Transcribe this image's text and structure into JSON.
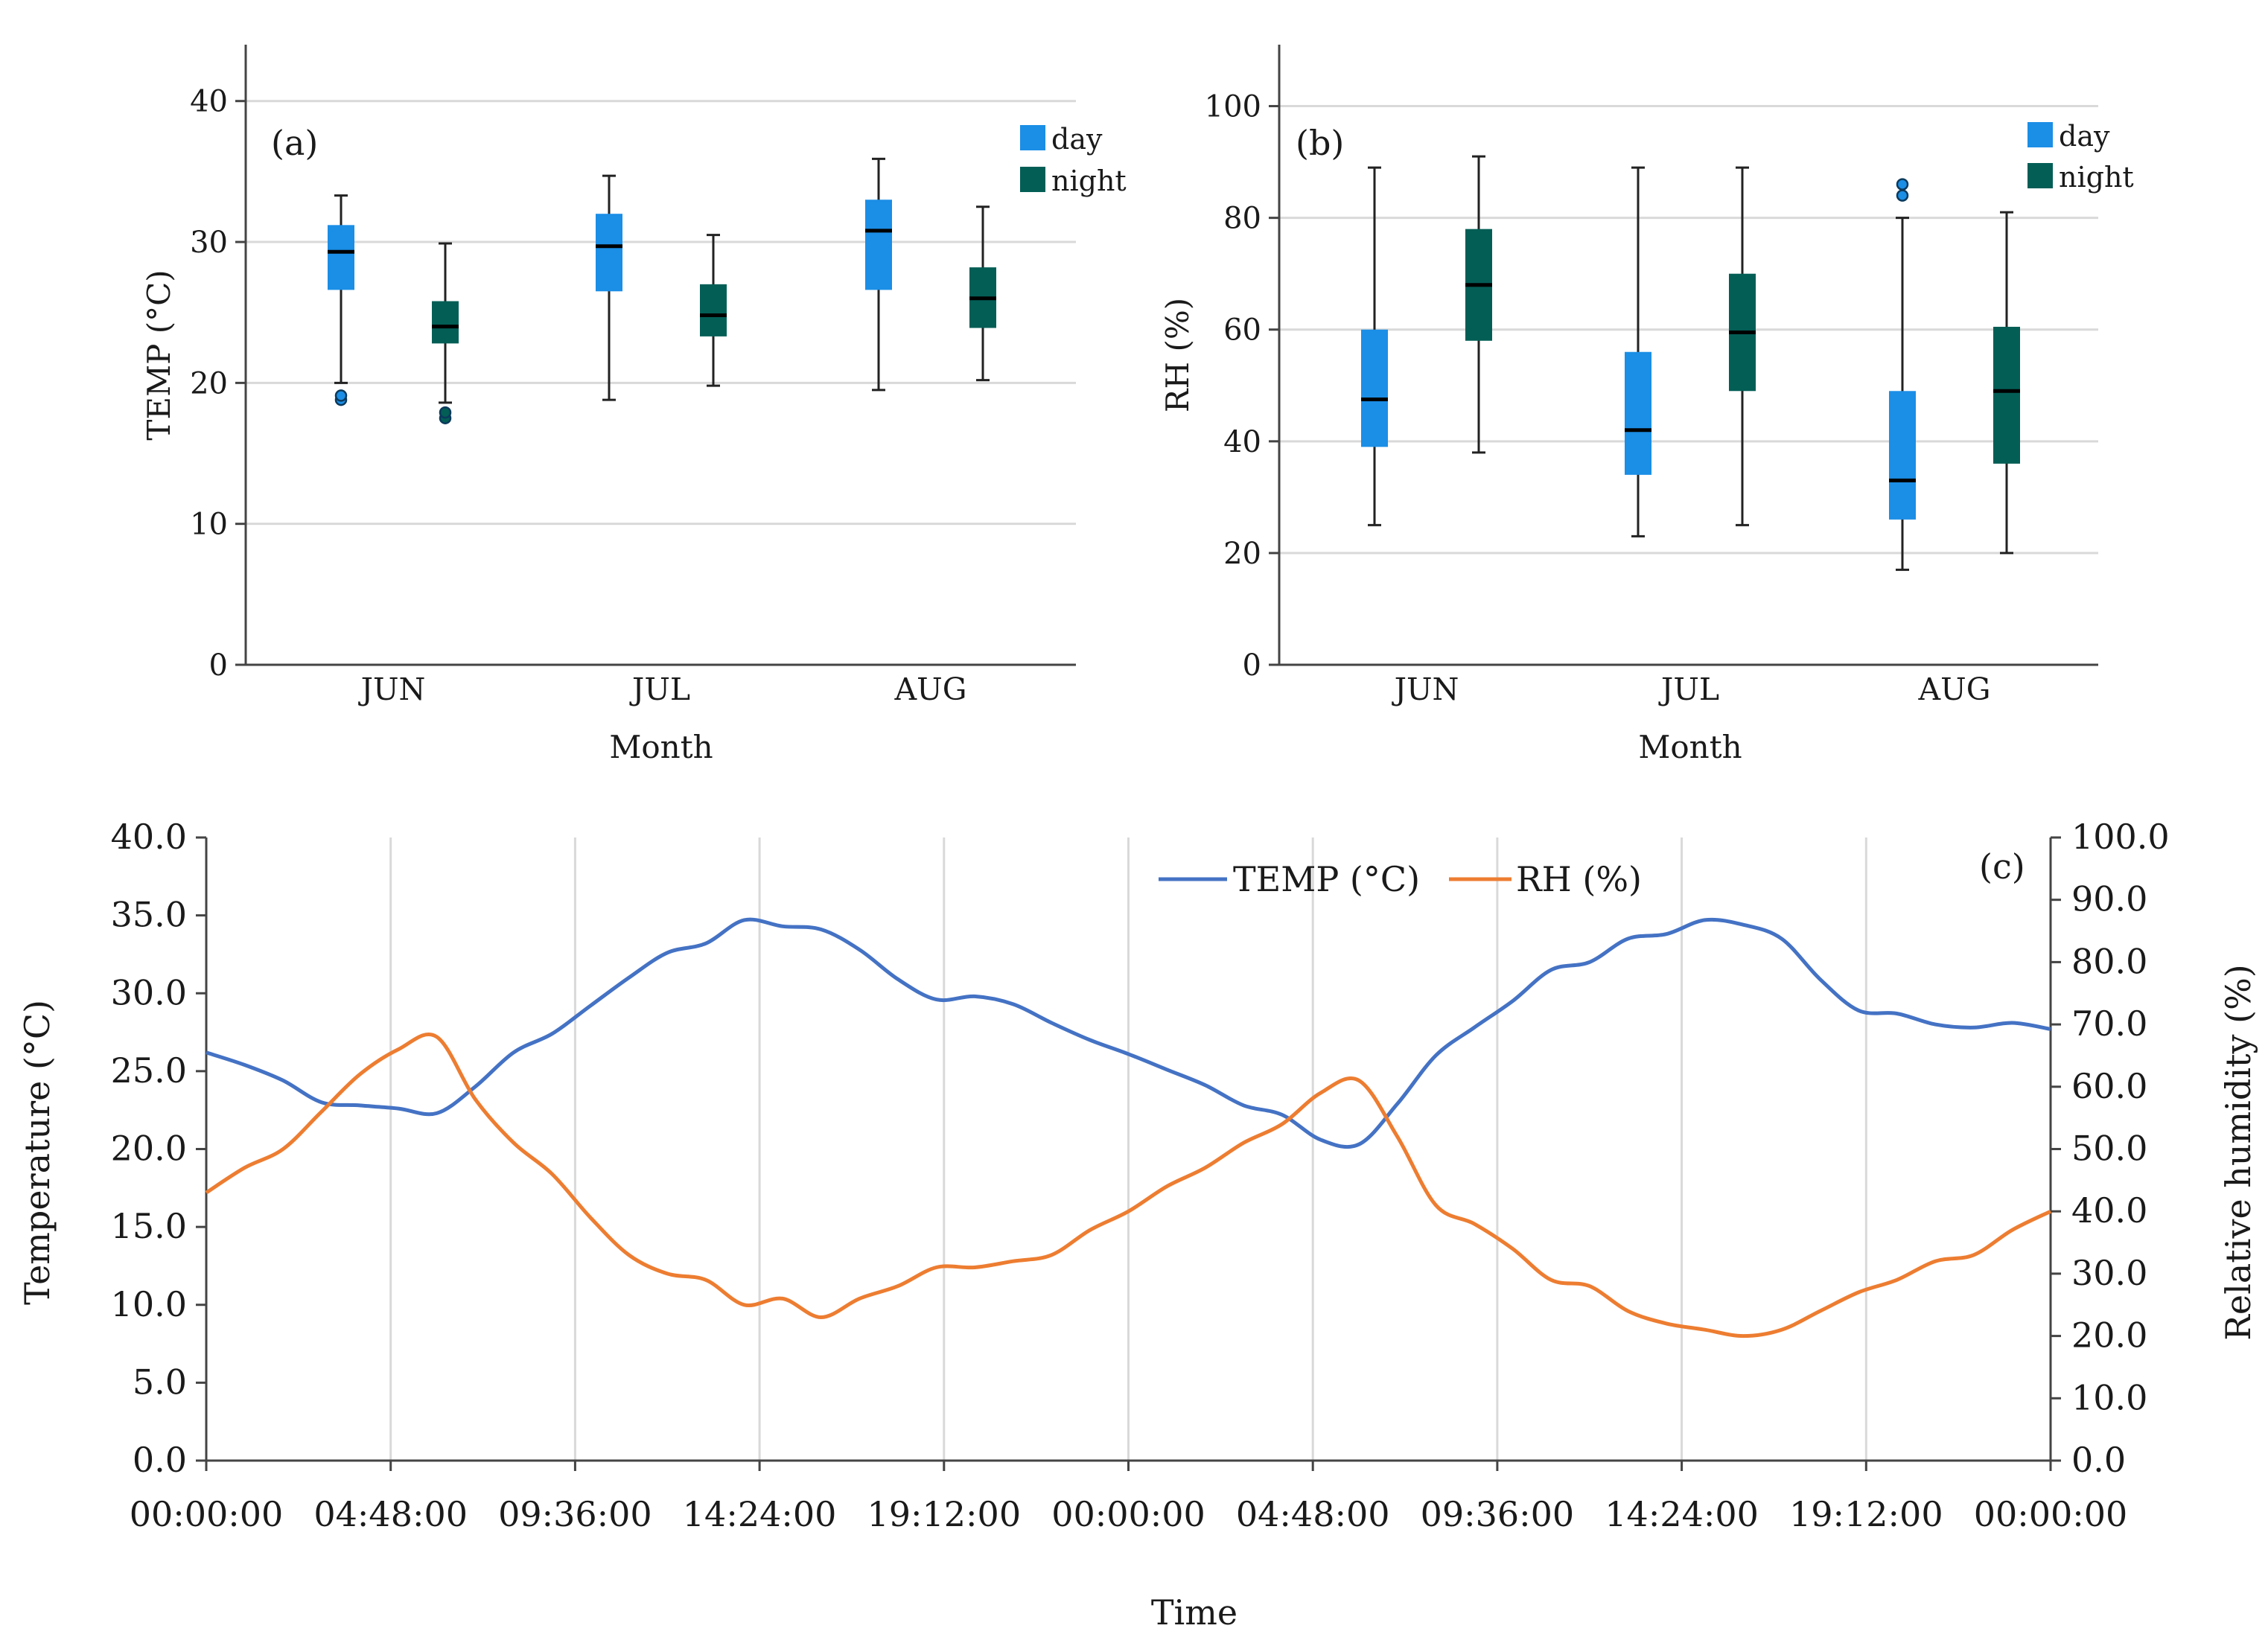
{
  "chart_data": [
    {
      "id": "a",
      "type": "box",
      "panel_label": "(a)",
      "xlabel": "Month",
      "ylabel": "TEMP (°C)",
      "ylim": [
        0,
        44
      ],
      "yticks": [
        0,
        10,
        20,
        30,
        40
      ],
      "categories": [
        "JUN",
        "JUL",
        "AUG"
      ],
      "legend": [
        "day",
        "night"
      ],
      "series": [
        {
          "name": "day",
          "color": "#1b8ee6",
          "boxes": [
            {
              "month": "JUN",
              "min": 20.0,
              "q1": 26.6,
              "median": 29.3,
              "q3": 31.2,
              "max": 33.3,
              "outliers": [
                18.8,
                19.1
              ]
            },
            {
              "month": "JUL",
              "min": 18.8,
              "q1": 26.5,
              "median": 29.7,
              "q3": 32.0,
              "max": 34.7,
              "outliers": []
            },
            {
              "month": "AUG",
              "min": 19.5,
              "q1": 26.6,
              "median": 30.8,
              "q3": 33.0,
              "max": 35.9,
              "outliers": []
            }
          ]
        },
        {
          "name": "night",
          "color": "#035e56",
          "boxes": [
            {
              "month": "JUN",
              "min": 18.6,
              "q1": 22.8,
              "median": 24.0,
              "q3": 25.8,
              "max": 29.9,
              "outliers": [
                17.5,
                17.9
              ]
            },
            {
              "month": "JUL",
              "min": 19.8,
              "q1": 23.3,
              "median": 24.8,
              "q3": 27.0,
              "max": 30.5,
              "outliers": []
            },
            {
              "month": "AUG",
              "min": 20.2,
              "q1": 23.9,
              "median": 26.0,
              "q3": 28.2,
              "max": 32.5,
              "outliers": []
            }
          ]
        }
      ]
    },
    {
      "id": "b",
      "type": "box",
      "panel_label": "(b)",
      "xlabel": "Month",
      "ylabel": "RH (%)",
      "ylim": [
        0,
        111
      ],
      "yticks": [
        0,
        20,
        40,
        60,
        80,
        100
      ],
      "categories": [
        "JUN",
        "JUL",
        "AUG"
      ],
      "legend": [
        "day",
        "night"
      ],
      "series": [
        {
          "name": "day",
          "color": "#1b8ee6",
          "boxes": [
            {
              "month": "JUN",
              "min": 25,
              "q1": 39,
              "median": 47.5,
              "q3": 60,
              "max": 89,
              "outliers": []
            },
            {
              "month": "JUL",
              "min": 23,
              "q1": 34,
              "median": 42,
              "q3": 56,
              "max": 89,
              "outliers": []
            },
            {
              "month": "AUG",
              "min": 17,
              "q1": 26,
              "median": 33,
              "q3": 49,
              "max": 80,
              "outliers": [
                84,
                86
              ]
            }
          ]
        },
        {
          "name": "night",
          "color": "#035e56",
          "boxes": [
            {
              "month": "JUN",
              "min": 38,
              "q1": 58,
              "median": 68,
              "q3": 78,
              "max": 91,
              "outliers": []
            },
            {
              "month": "JUL",
              "min": 25,
              "q1": 49,
              "median": 59.5,
              "q3": 70,
              "max": 89,
              "outliers": []
            },
            {
              "month": "AUG",
              "min": 20,
              "q1": 36,
              "median": 49,
              "q3": 60.5,
              "max": 81,
              "outliers": []
            }
          ]
        }
      ]
    },
    {
      "id": "c",
      "type": "line",
      "panel_label": "(c)",
      "xlabel": "Time",
      "ylabel": "Temperature (°C)",
      "y2label": "Relative humidity (%)",
      "ylim": [
        0,
        40
      ],
      "y2lim": [
        0,
        100
      ],
      "yticks": [
        "0.0",
        "5.0",
        "10.0",
        "15.0",
        "20.0",
        "25.0",
        "30.0",
        "35.0",
        "40.0"
      ],
      "y2ticks": [
        "0.0",
        "10.0",
        "20.0",
        "30.0",
        "40.0",
        "50.0",
        "60.0",
        "70.0",
        "80.0",
        "90.0",
        "100.0"
      ],
      "xlim_hours": [
        0,
        48
      ],
      "xticks": [
        "00:00:00",
        "04:48:00",
        "09:36:00",
        "14:24:00",
        "19:12:00",
        "00:00:00",
        "04:48:00",
        "09:36:00",
        "14:24:00",
        "19:12:00",
        "00:00:00"
      ],
      "series": [
        {
          "name": "TEMP (°C)",
          "axis": "left",
          "color": "#4472c4",
          "x": [
            0,
            1,
            2,
            3,
            4,
            5,
            6,
            7,
            8,
            9,
            10,
            11,
            12,
            13,
            14,
            15,
            16,
            17,
            18,
            19,
            20,
            21,
            22,
            23,
            24,
            25,
            26,
            27,
            28,
            29,
            30,
            31,
            32,
            33,
            34,
            35,
            36,
            37,
            38,
            39,
            40,
            41,
            42,
            43,
            44,
            45,
            46,
            47,
            48
          ],
          "y": [
            26.2,
            25.4,
            24.4,
            23.0,
            22.8,
            22.6,
            22.3,
            24.0,
            26.2,
            27.4,
            29.2,
            31.0,
            32.6,
            33.2,
            34.7,
            34.3,
            34.1,
            32.8,
            30.9,
            29.6,
            29.8,
            29.3,
            28.1,
            27.0,
            26.1,
            25.1,
            24.1,
            22.8,
            22.2,
            20.6,
            20.3,
            22.9,
            26.0,
            27.8,
            29.5,
            31.5,
            32.0,
            33.5,
            33.8,
            34.7,
            34.4,
            33.5,
            30.9,
            28.9,
            28.7,
            28.0,
            27.8,
            28.1,
            27.7
          ]
        },
        {
          "name": "RH (%)",
          "axis": "right",
          "color": "#ed7d31",
          "x": [
            0,
            1,
            2,
            3,
            4,
            5,
            6,
            7,
            8,
            9,
            10,
            11,
            12,
            13,
            14,
            15,
            16,
            17,
            18,
            19,
            20,
            21,
            22,
            23,
            24,
            25,
            26,
            27,
            28,
            29,
            30,
            31,
            32,
            33,
            34,
            35,
            36,
            37,
            38,
            39,
            40,
            41,
            42,
            43,
            44,
            45,
            46,
            47,
            48
          ],
          "y": [
            43,
            47,
            50,
            56,
            62,
            66,
            68,
            58,
            51,
            46,
            39,
            33,
            30,
            29,
            25,
            26,
            23,
            26,
            28,
            31,
            31,
            32,
            33,
            37,
            40,
            44,
            47,
            51,
            54,
            59,
            61,
            52,
            41,
            38,
            34,
            29,
            28,
            24,
            22,
            21,
            20,
            21,
            24,
            27,
            29,
            32,
            33,
            37,
            40
          ]
        }
      ],
      "legend_position": "top-center"
    }
  ]
}
